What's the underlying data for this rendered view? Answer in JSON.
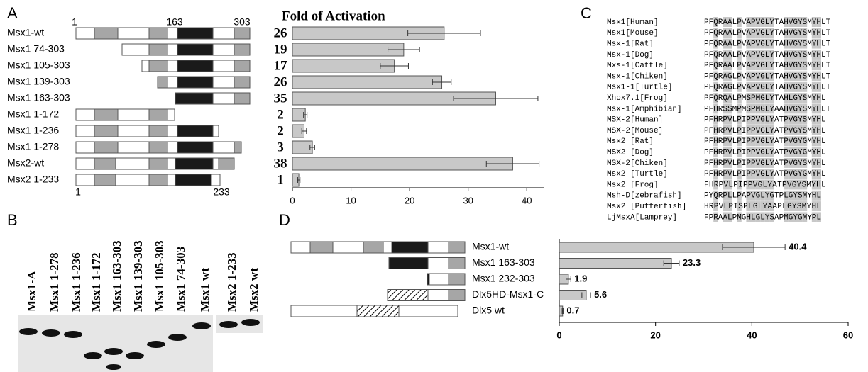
{
  "panels": {
    "a": "A",
    "b": "B",
    "c": "C",
    "d": "D"
  },
  "panel_a": {
    "scale_top": [
      "1",
      "163",
      "303"
    ],
    "scale_bottom": [
      "1",
      "233"
    ]
  },
  "panel_b": {
    "lanes": [
      "Msx1-A",
      "Msx1 1-278",
      "Msx1 1-236",
      "Msx1 1-172",
      "Msx1 163-303",
      "Msx1 139-303",
      "Msx1 105-303",
      "Msx1 74-303",
      "Msx1 wt",
      "Msx2 1-233",
      "Msx2 wt"
    ]
  },
  "panel_c": {
    "rows": [
      {
        "name": "Msx1[Human]",
        "sequence": "PFQRAALPVAPVGLYTAHVGYSMYHLT"
      },
      {
        "name": "Msx1[Mouse]",
        "sequence": "PFQRAALPVAPVGLYTAHVGYSMYHLT"
      },
      {
        "name": "Msx-1[Rat]",
        "sequence": "PFQRAALPVAPVGLYTAHVGYSMYHLT"
      },
      {
        "name": "Msx-1[Dog]",
        "sequence": "PFQRAALPVAPVGLYTAHVGYSMYHLT"
      },
      {
        "name": "Mxs-1[Cattle]",
        "sequence": "PFQRAALPVAPVGLYTAHVGYSMYHLT"
      },
      {
        "name": "Msx-1[Chiken]",
        "sequence": "PFQRAGLPVAPVGLYTAHVGYSMYHLT"
      },
      {
        "name": "Msx1-1[Turtle]",
        "sequence": "PFQRAGLPVAPVGLYTAHVGYSMYHLT"
      },
      {
        "name": "Xhox7.1[Frog]",
        "sequence": "PFQRQALPMSPMGLYTAHLGYSMYHL"
      },
      {
        "name": "Msx-1[Amphibian]",
        "sequence": "PFHRSSMPMSPMGLYAAHVGYSMYHLT"
      },
      {
        "name": "MSX-2[Human]",
        "sequence": "PFHRPVLPIPPVGLYATPVGYSMYHL"
      },
      {
        "name": "MSX-2[Mouse]",
        "sequence": "PFHRPVLPIPPVGLYATPVGYSMYHL"
      },
      {
        "name": "Msx2 [Rat]",
        "sequence": "PFHRPVLPIPPVGLYATPVGYGMYHL"
      },
      {
        "name": "MSX2 [Dog]",
        "sequence": "PFHRPVLPIPPVGLYATPVGYGMYHL"
      },
      {
        "name": "MSX-2[Chiken]",
        "sequence": "PFHRPVLPIPPVGLYATPVGYSMYHL"
      },
      {
        "name": "Msx2 [Turtle]",
        "sequence": "PFHRPVLPIPPVGLYATPVGYGMYHL"
      },
      {
        "name": "Msx2 [Frog]",
        "sequence": " FHRPVLPIPPVGLYATPVGYSMYHL"
      },
      {
        "name": "Msh-D[zebrafish]",
        "sequence": "PYQRPLLPAPVGLYGTPLGYSMYHL"
      },
      {
        "name": "Msx2 [Pufferfish]",
        "sequence": " HRPVLPISPLGLYAAPLGYSMYHL"
      },
      {
        "name": "LjMsxA[Lamprey]",
        "sequence": "FPRAALPMGHLGLYSAPMGYGMYPL"
      }
    ]
  },
  "chart_data": [
    {
      "type": "bar",
      "orientation": "horizontal",
      "title": "Fold of Activation",
      "categories": [
        "Msx1-wt",
        "Msx1 74-303",
        "Msx1 105-303",
        "Msx1 139-303",
        "Msx1 163-303",
        "Msx1 1-172",
        "Msx1 1-236",
        "Msx1 1-278",
        "Msx2-wt",
        "Msx2 1-233"
      ],
      "values": [
        25.9,
        19,
        17.4,
        25.5,
        34.7,
        2.2,
        2,
        3.4,
        37.6,
        1.1
      ],
      "errors": [
        6.2,
        2.7,
        2.4,
        1.6,
        7.2,
        0.3,
        0.4,
        0.4,
        4.5,
        0.2
      ],
      "value_labels": [
        "26",
        "19",
        "17",
        "26",
        "35",
        "2",
        "2",
        "3",
        "38",
        "1"
      ],
      "color": "#c8c8c8",
      "xlim": [
        0,
        43
      ],
      "xticks": [
        0,
        10,
        20,
        30,
        40
      ]
    },
    {
      "type": "bar",
      "orientation": "horizontal",
      "categories": [
        "Msx1-wt",
        "Msx1 163-303",
        "Msx1 232-303",
        "Dlx5HD-Msx1-C",
        "Dlx5 wt"
      ],
      "values": [
        40.4,
        23.3,
        1.9,
        5.6,
        0.7
      ],
      "errors": [
        6.5,
        1.6,
        0.5,
        0.9,
        0.1
      ],
      "color": "#c8c8c8",
      "xlim": [
        0,
        60
      ],
      "xticks": [
        0,
        20,
        40,
        60
      ]
    }
  ]
}
